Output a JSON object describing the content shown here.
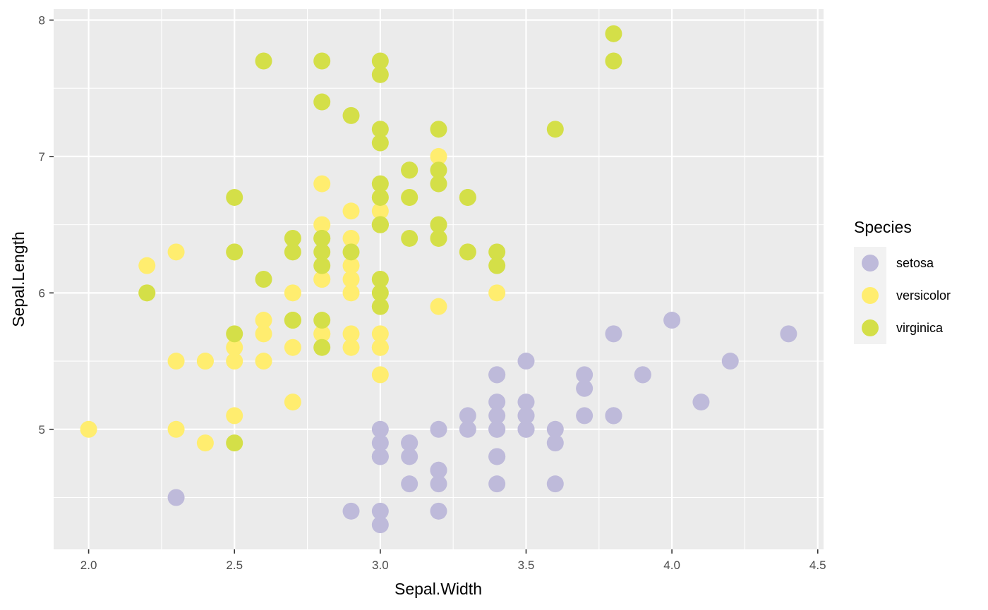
{
  "chart_data": {
    "type": "scatter",
    "xlabel": "Sepal.Width",
    "ylabel": "Sepal.Length",
    "xlim": [
      1.88,
      4.52
    ],
    "ylim": [
      4.12,
      8.08
    ],
    "x_ticks": [
      2.0,
      2.5,
      3.0,
      3.5,
      4.0,
      4.5
    ],
    "x_tick_labels": [
      "2.0",
      "2.5",
      "3.0",
      "3.5",
      "4.0",
      "4.5"
    ],
    "y_ticks": [
      5,
      6,
      7,
      8
    ],
    "y_tick_labels": [
      "5",
      "6",
      "7",
      "8"
    ],
    "grid": true,
    "legend": {
      "title": "Species",
      "position": "right"
    },
    "series": [
      {
        "name": "setosa",
        "color": "#bebada",
        "points": [
          [
            3.5,
            5.1
          ],
          [
            3.0,
            4.9
          ],
          [
            3.2,
            4.7
          ],
          [
            3.1,
            4.6
          ],
          [
            3.6,
            5.0
          ],
          [
            3.9,
            5.4
          ],
          [
            3.4,
            4.6
          ],
          [
            3.4,
            5.0
          ],
          [
            2.9,
            4.4
          ],
          [
            3.1,
            4.9
          ],
          [
            3.7,
            5.4
          ],
          [
            3.4,
            4.8
          ],
          [
            3.0,
            4.8
          ],
          [
            3.0,
            4.3
          ],
          [
            4.0,
            5.8
          ],
          [
            4.4,
            5.7
          ],
          [
            3.9,
            5.4
          ],
          [
            3.5,
            5.1
          ],
          [
            3.8,
            5.7
          ],
          [
            3.8,
            5.1
          ],
          [
            3.4,
            5.4
          ],
          [
            3.7,
            5.1
          ],
          [
            3.6,
            4.6
          ],
          [
            3.3,
            5.1
          ],
          [
            3.4,
            4.8
          ],
          [
            3.0,
            5.0
          ],
          [
            3.4,
            5.0
          ],
          [
            3.5,
            5.2
          ],
          [
            3.4,
            5.2
          ],
          [
            3.2,
            4.7
          ],
          [
            3.1,
            4.8
          ],
          [
            3.4,
            5.4
          ],
          [
            4.1,
            5.2
          ],
          [
            4.2,
            5.5
          ],
          [
            3.1,
            4.9
          ],
          [
            3.2,
            5.0
          ],
          [
            3.5,
            5.5
          ],
          [
            3.6,
            4.9
          ],
          [
            3.0,
            4.4
          ],
          [
            3.4,
            5.1
          ],
          [
            3.5,
            5.0
          ],
          [
            2.3,
            4.5
          ],
          [
            3.2,
            4.4
          ],
          [
            3.5,
            5.0
          ],
          [
            3.8,
            5.1
          ],
          [
            3.0,
            4.8
          ],
          [
            3.8,
            5.1
          ],
          [
            3.2,
            4.6
          ],
          [
            3.7,
            5.3
          ],
          [
            3.3,
            5.0
          ]
        ]
      },
      {
        "name": "versicolor",
        "color": "#ffed6f",
        "points": [
          [
            3.2,
            7.0
          ],
          [
            3.2,
            6.4
          ],
          [
            3.1,
            6.9
          ],
          [
            2.3,
            5.5
          ],
          [
            2.8,
            6.5
          ],
          [
            2.8,
            5.7
          ],
          [
            3.3,
            6.3
          ],
          [
            2.4,
            4.9
          ],
          [
            2.9,
            6.6
          ],
          [
            2.7,
            5.2
          ],
          [
            2.0,
            5.0
          ],
          [
            3.0,
            5.9
          ],
          [
            2.2,
            6.0
          ],
          [
            2.9,
            6.1
          ],
          [
            2.9,
            5.6
          ],
          [
            3.1,
            6.7
          ],
          [
            3.0,
            5.6
          ],
          [
            2.7,
            5.8
          ],
          [
            2.2,
            6.2
          ],
          [
            2.5,
            5.6
          ],
          [
            3.2,
            5.9
          ],
          [
            2.8,
            6.1
          ],
          [
            2.5,
            6.3
          ],
          [
            2.8,
            6.1
          ],
          [
            2.9,
            6.4
          ],
          [
            3.0,
            6.6
          ],
          [
            2.8,
            6.8
          ],
          [
            3.0,
            6.7
          ],
          [
            2.9,
            6.0
          ],
          [
            2.6,
            5.7
          ],
          [
            2.4,
            5.5
          ],
          [
            2.4,
            5.5
          ],
          [
            2.7,
            5.8
          ],
          [
            2.7,
            6.0
          ],
          [
            3.0,
            5.4
          ],
          [
            3.4,
            6.0
          ],
          [
            3.1,
            6.7
          ],
          [
            2.3,
            6.3
          ],
          [
            3.0,
            5.6
          ],
          [
            2.5,
            5.5
          ],
          [
            2.6,
            5.5
          ],
          [
            3.0,
            6.1
          ],
          [
            2.6,
            5.8
          ],
          [
            2.3,
            5.0
          ],
          [
            2.7,
            5.6
          ],
          [
            3.0,
            5.7
          ],
          [
            2.9,
            5.7
          ],
          [
            2.9,
            6.2
          ],
          [
            2.5,
            5.1
          ],
          [
            2.8,
            5.7
          ]
        ]
      },
      {
        "name": "virginica",
        "color": "#d4df48",
        "points": [
          [
            3.3,
            6.3
          ],
          [
            2.7,
            5.8
          ],
          [
            3.0,
            7.1
          ],
          [
            2.9,
            6.3
          ],
          [
            3.0,
            6.5
          ],
          [
            3.0,
            7.6
          ],
          [
            2.5,
            4.9
          ],
          [
            2.9,
            7.3
          ],
          [
            2.5,
            6.7
          ],
          [
            3.6,
            7.2
          ],
          [
            3.2,
            6.5
          ],
          [
            2.7,
            6.4
          ],
          [
            3.0,
            6.8
          ],
          [
            2.5,
            5.7
          ],
          [
            2.8,
            5.8
          ],
          [
            3.2,
            6.4
          ],
          [
            3.0,
            6.5
          ],
          [
            3.8,
            7.7
          ],
          [
            2.6,
            7.7
          ],
          [
            2.2,
            6.0
          ],
          [
            3.2,
            6.9
          ],
          [
            2.8,
            5.6
          ],
          [
            2.8,
            7.7
          ],
          [
            2.7,
            6.3
          ],
          [
            3.3,
            6.7
          ],
          [
            3.2,
            7.2
          ],
          [
            2.8,
            6.2
          ],
          [
            3.0,
            6.1
          ],
          [
            2.8,
            6.4
          ],
          [
            3.0,
            7.2
          ],
          [
            2.8,
            7.4
          ],
          [
            3.8,
            7.9
          ],
          [
            2.8,
            6.4
          ],
          [
            2.8,
            6.3
          ],
          [
            2.6,
            6.1
          ],
          [
            3.0,
            7.7
          ],
          [
            3.4,
            6.3
          ],
          [
            3.1,
            6.4
          ],
          [
            3.0,
            6.0
          ],
          [
            3.1,
            6.9
          ],
          [
            3.1,
            6.7
          ],
          [
            3.1,
            6.9
          ],
          [
            2.7,
            5.8
          ],
          [
            3.2,
            6.8
          ],
          [
            3.3,
            6.7
          ],
          [
            3.0,
            6.7
          ],
          [
            2.5,
            6.3
          ],
          [
            3.0,
            6.5
          ],
          [
            3.4,
            6.2
          ],
          [
            3.0,
            5.9
          ]
        ]
      }
    ]
  }
}
